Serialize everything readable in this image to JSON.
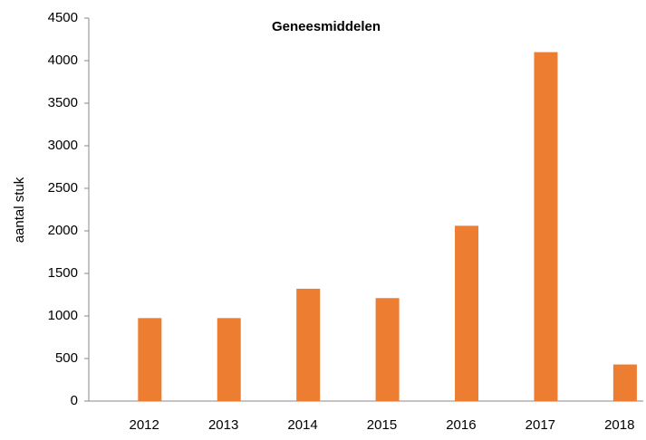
{
  "chart_data": {
    "type": "bar",
    "title": "Geneesmiddelen",
    "y_label": "aantal stuk",
    "categories": [
      "2012",
      "2013",
      "2014",
      "2015",
      "2016",
      "2017",
      "2018"
    ],
    "values": [
      975,
      975,
      1320,
      1210,
      2060,
      4100,
      430
    ],
    "color": "#ed7d31",
    "ylim": [
      0,
      4500
    ],
    "yticks": [
      0,
      500,
      1000,
      1500,
      2000,
      2500,
      3000,
      3500,
      4000,
      4500
    ],
    "grid": false
  }
}
